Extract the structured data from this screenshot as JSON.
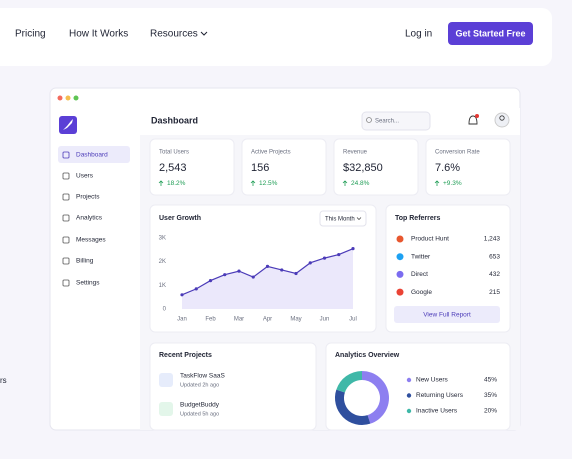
{
  "nav": {
    "links": [
      "Pricing",
      "How It Works",
      "Resources"
    ],
    "login": "Log in",
    "cta": "Get Started Free"
  },
  "side_text": "rs",
  "sidebar": {
    "menu": [
      "Dashboard",
      "Users",
      "Projects",
      "Analytics",
      "Messages",
      "Billing",
      "Settings"
    ]
  },
  "header": {
    "title": "Dashboard",
    "search": "Search..."
  },
  "stats": [
    {
      "label": "Total Users",
      "value": "2,543",
      "change": "18.2%"
    },
    {
      "label": "Active Projects",
      "value": "156",
      "change": "12.5%"
    },
    {
      "label": "Revenue",
      "value": "$32,850",
      "change": "24.8%"
    },
    {
      "label": "Conversion Rate",
      "value": "7.6%",
      "change": "+9.3%"
    }
  ],
  "user_growth": {
    "type": "line",
    "title": "User Growth",
    "filter": "This Month",
    "categories": [
      "Jan",
      null,
      "Feb",
      null,
      "Mar",
      null,
      "Apr",
      null,
      "May",
      null,
      "Jun",
      null,
      "Jul"
    ],
    "values": [
      600,
      850,
      1200,
      1450,
      1600,
      1350,
      1800,
      1650,
      1500,
      1950,
      2150,
      2300,
      2550
    ],
    "color": "#4b3bb8",
    "ylim": [
      0,
      3000
    ],
    "yticks": [
      0,
      {
        "value": 1000,
        "label": "1K"
      },
      {
        "value": 2000,
        "label": "2K"
      },
      {
        "value": 3000,
        "label": "3K"
      }
    ]
  },
  "referrers": {
    "title": "Top Referrers",
    "rows": [
      [
        "Product Hunt",
        "1,243"
      ],
      [
        "Twitter",
        "653"
      ],
      [
        "Direct",
        "432"
      ],
      [
        "Google",
        "215"
      ]
    ],
    "button": "View Full Report"
  },
  "recent_projects": {
    "title": "Recent Projects",
    "items": [
      [
        "TaskFlow SaaS",
        "Updated 2h ago"
      ],
      [
        "BudgetBuddy",
        "Updated 5h ago"
      ]
    ]
  },
  "analytics_overview": {
    "type": "pie",
    "title": "Analytics Overview",
    "categories": [
      "New Users",
      "Returning Users",
      "Inactive Users"
    ],
    "values": [
      45,
      35,
      20
    ],
    "value_labels": [
      "45%",
      "35%",
      "20%"
    ],
    "colors": [
      "#8d7ff0",
      "#2f4f9e",
      "#3fb8a8"
    ]
  }
}
